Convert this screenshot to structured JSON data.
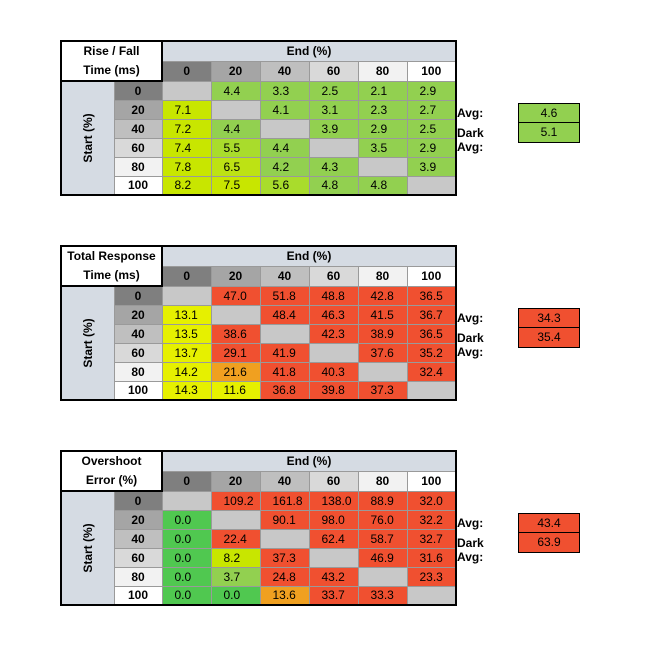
{
  "tables": [
    {
      "title_line1": "Rise / Fall",
      "title_line2": "Time (ms)",
      "end_label": "End (%)",
      "start_label": "Start (%)",
      "columns": [
        "0",
        "20",
        "40",
        "60",
        "80",
        "100"
      ],
      "rows": [
        {
          "label": "0",
          "cells": [
            {
              "v": "",
              "c": "#c8c8c8"
            },
            {
              "v": "4.4",
              "c": "#92d050"
            },
            {
              "v": "3.3",
              "c": "#92d050"
            },
            {
              "v": "2.5",
              "c": "#92d050"
            },
            {
              "v": "2.1",
              "c": "#92d050"
            },
            {
              "v": "2.9",
              "c": "#92d050"
            }
          ]
        },
        {
          "label": "20",
          "cells": [
            {
              "v": "7.1",
              "c": "#c8e600"
            },
            {
              "v": "",
              "c": "#c8c8c8"
            },
            {
              "v": "4.1",
              "c": "#92d050"
            },
            {
              "v": "3.1",
              "c": "#92d050"
            },
            {
              "v": "2.3",
              "c": "#92d050"
            },
            {
              "v": "2.7",
              "c": "#92d050"
            }
          ]
        },
        {
          "label": "40",
          "cells": [
            {
              "v": "7.2",
              "c": "#c8e600"
            },
            {
              "v": "4.4",
              "c": "#92d050"
            },
            {
              "v": "",
              "c": "#c8c8c8"
            },
            {
              "v": "3.9",
              "c": "#92d050"
            },
            {
              "v": "2.9",
              "c": "#92d050"
            },
            {
              "v": "2.5",
              "c": "#92d050"
            }
          ]
        },
        {
          "label": "60",
          "cells": [
            {
              "v": "7.4",
              "c": "#c8e600"
            },
            {
              "v": "5.5",
              "c": "#a9dc2c"
            },
            {
              "v": "4.4",
              "c": "#92d050"
            },
            {
              "v": "",
              "c": "#c8c8c8"
            },
            {
              "v": "3.5",
              "c": "#92d050"
            },
            {
              "v": "2.9",
              "c": "#92d050"
            }
          ]
        },
        {
          "label": "80",
          "cells": [
            {
              "v": "7.8",
              "c": "#c8e600"
            },
            {
              "v": "6.5",
              "c": "#bde214"
            },
            {
              "v": "4.2",
              "c": "#92d050"
            },
            {
              "v": "4.3",
              "c": "#92d050"
            },
            {
              "v": "",
              "c": "#c8c8c8"
            },
            {
              "v": "3.9",
              "c": "#92d050"
            }
          ]
        },
        {
          "label": "100",
          "cells": [
            {
              "v": "8.2",
              "c": "#c8e600"
            },
            {
              "v": "7.5",
              "c": "#c8e600"
            },
            {
              "v": "5.6",
              "c": "#a9dc2c"
            },
            {
              "v": "4.8",
              "c": "#92d050"
            },
            {
              "v": "4.8",
              "c": "#92d050"
            },
            {
              "v": "",
              "c": "#c8c8c8"
            }
          ]
        }
      ],
      "avg_label": "Avg:",
      "avg_value": "4.6",
      "avg_color": "#92d050",
      "dark_avg_label": "Dark Avg:",
      "dark_avg_value": "5.1",
      "dark_avg_color": "#92d050"
    },
    {
      "title_line1": "Total Response",
      "title_line2": "Time (ms)",
      "end_label": "End (%)",
      "start_label": "Start (%)",
      "columns": [
        "0",
        "20",
        "40",
        "60",
        "80",
        "100"
      ],
      "rows": [
        {
          "label": "0",
          "cells": [
            {
              "v": "",
              "c": "#c8c8c8"
            },
            {
              "v": "47.0",
              "c": "#f05030"
            },
            {
              "v": "51.8",
              "c": "#f05030"
            },
            {
              "v": "48.8",
              "c": "#f05030"
            },
            {
              "v": "42.8",
              "c": "#f05030"
            },
            {
              "v": "36.5",
              "c": "#f05030"
            }
          ]
        },
        {
          "label": "20",
          "cells": [
            {
              "v": "13.1",
              "c": "#e6f000"
            },
            {
              "v": "",
              "c": "#c8c8c8"
            },
            {
              "v": "48.4",
              "c": "#f05030"
            },
            {
              "v": "46.3",
              "c": "#f05030"
            },
            {
              "v": "41.5",
              "c": "#f05030"
            },
            {
              "v": "36.7",
              "c": "#f05030"
            }
          ]
        },
        {
          "label": "40",
          "cells": [
            {
              "v": "13.5",
              "c": "#e6f000"
            },
            {
              "v": "38.6",
              "c": "#f05030"
            },
            {
              "v": "",
              "c": "#c8c8c8"
            },
            {
              "v": "42.3",
              "c": "#f05030"
            },
            {
              "v": "38.9",
              "c": "#f05030"
            },
            {
              "v": "36.5",
              "c": "#f05030"
            }
          ]
        },
        {
          "label": "60",
          "cells": [
            {
              "v": "13.7",
              "c": "#e6f000"
            },
            {
              "v": "29.1",
              "c": "#f05030"
            },
            {
              "v": "41.9",
              "c": "#f05030"
            },
            {
              "v": "",
              "c": "#c8c8c8"
            },
            {
              "v": "37.6",
              "c": "#f05030"
            },
            {
              "v": "35.2",
              "c": "#f05030"
            }
          ]
        },
        {
          "label": "80",
          "cells": [
            {
              "v": "14.2",
              "c": "#e6f000"
            },
            {
              "v": "21.6",
              "c": "#f0a020"
            },
            {
              "v": "41.8",
              "c": "#f05030"
            },
            {
              "v": "40.3",
              "c": "#f05030"
            },
            {
              "v": "",
              "c": "#c8c8c8"
            },
            {
              "v": "32.4",
              "c": "#f05030"
            }
          ]
        },
        {
          "label": "100",
          "cells": [
            {
              "v": "14.3",
              "c": "#e6f000"
            },
            {
              "v": "11.6",
              "c": "#e6f000"
            },
            {
              "v": "36.8",
              "c": "#f05030"
            },
            {
              "v": "39.8",
              "c": "#f05030"
            },
            {
              "v": "37.3",
              "c": "#f05030"
            },
            {
              "v": "",
              "c": "#c8c8c8"
            }
          ]
        }
      ],
      "avg_label": "Avg:",
      "avg_value": "34.3",
      "avg_color": "#f05030",
      "dark_avg_label": "Dark Avg:",
      "dark_avg_value": "35.4",
      "dark_avg_color": "#f05030"
    },
    {
      "title_line1": "Overshoot",
      "title_line2": "Error (%)",
      "end_label": "End (%)",
      "start_label": "Start (%)",
      "columns": [
        "0",
        "20",
        "40",
        "60",
        "80",
        "100"
      ],
      "rows": [
        {
          "label": "0",
          "cells": [
            {
              "v": "",
              "c": "#c8c8c8"
            },
            {
              "v": "109.2",
              "c": "#f05030"
            },
            {
              "v": "161.8",
              "c": "#f05030"
            },
            {
              "v": "138.0",
              "c": "#f05030"
            },
            {
              "v": "88.9",
              "c": "#f05030"
            },
            {
              "v": "32.0",
              "c": "#f05030"
            }
          ]
        },
        {
          "label": "20",
          "cells": [
            {
              "v": "0.0",
              "c": "#50c850"
            },
            {
              "v": "",
              "c": "#c8c8c8"
            },
            {
              "v": "90.1",
              "c": "#f05030"
            },
            {
              "v": "98.0",
              "c": "#f05030"
            },
            {
              "v": "76.0",
              "c": "#f05030"
            },
            {
              "v": "32.2",
              "c": "#f05030"
            }
          ]
        },
        {
          "label": "40",
          "cells": [
            {
              "v": "0.0",
              "c": "#50c850"
            },
            {
              "v": "22.4",
              "c": "#f05030"
            },
            {
              "v": "",
              "c": "#c8c8c8"
            },
            {
              "v": "62.4",
              "c": "#f05030"
            },
            {
              "v": "58.7",
              "c": "#f05030"
            },
            {
              "v": "32.7",
              "c": "#f05030"
            }
          ]
        },
        {
          "label": "60",
          "cells": [
            {
              "v": "0.0",
              "c": "#50c850"
            },
            {
              "v": "8.2",
              "c": "#c8e600"
            },
            {
              "v": "37.3",
              "c": "#f05030"
            },
            {
              "v": "",
              "c": "#c8c8c8"
            },
            {
              "v": "46.9",
              "c": "#f05030"
            },
            {
              "v": "31.6",
              "c": "#f05030"
            }
          ]
        },
        {
          "label": "80",
          "cells": [
            {
              "v": "0.0",
              "c": "#50c850"
            },
            {
              "v": "3.7",
              "c": "#92d050"
            },
            {
              "v": "24.8",
              "c": "#f05030"
            },
            {
              "v": "43.2",
              "c": "#f05030"
            },
            {
              "v": "",
              "c": "#c8c8c8"
            },
            {
              "v": "23.3",
              "c": "#f05030"
            }
          ]
        },
        {
          "label": "100",
          "cells": [
            {
              "v": "0.0",
              "c": "#50c850"
            },
            {
              "v": "0.0",
              "c": "#50c850"
            },
            {
              "v": "13.6",
              "c": "#f0a020"
            },
            {
              "v": "33.7",
              "c": "#f05030"
            },
            {
              "v": "33.3",
              "c": "#f05030"
            },
            {
              "v": "",
              "c": "#c8c8c8"
            }
          ]
        }
      ],
      "avg_label": "Avg:",
      "avg_value": "43.4",
      "avg_color": "#f05030",
      "dark_avg_label": "Dark Avg:",
      "dark_avg_value": "63.9",
      "dark_avg_color": "#f05030"
    }
  ],
  "header_shades": {
    "col": [
      "#7f7f7f",
      "#a5a5a5",
      "#bfbfbf",
      "#d9d9d9",
      "#f2f2f2",
      "#ffffff"
    ],
    "row": [
      "#7f7f7f",
      "#a5a5a5",
      "#bfbfbf",
      "#d9d9d9",
      "#f2f2f2",
      "#ffffff"
    ]
  }
}
